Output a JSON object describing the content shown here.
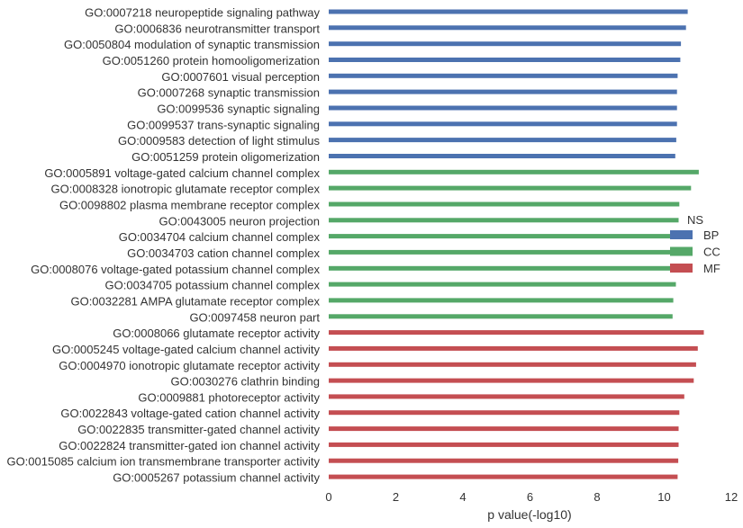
{
  "chart_data": {
    "type": "bar",
    "orientation": "horizontal",
    "xlabel": "p value(-log10)",
    "xlim": [
      0,
      12
    ],
    "xticks": [
      "0",
      "2",
      "4",
      "6",
      "8",
      "10",
      "12"
    ],
    "grid": false,
    "legend": {
      "title": "NS",
      "placement": "center-right",
      "entries": [
        {
          "name": "BP",
          "color": "#4C72B0"
        },
        {
          "name": "CC",
          "color": "#55A868"
        },
        {
          "name": "MF",
          "color": "#C44E52"
        }
      ]
    },
    "series": [
      {
        "name": "BP",
        "color": "#4C72B0",
        "categories": [
          "GO:0007218 neuropeptide signaling pathway",
          "GO:0006836 neurotransmitter transport",
          "GO:0050804 modulation of synaptic transmission",
          "GO:0051260 protein homooligomerization",
          "GO:0007601 visual perception",
          "GO:0007268 synaptic transmission",
          "GO:0099536 synaptic signaling",
          "GO:0099537 trans-synaptic signaling",
          "GO:0009583 detection of light stimulus",
          "GO:0051259 protein oligomerization"
        ],
        "values": [
          10.7,
          10.65,
          10.5,
          10.48,
          10.4,
          10.38,
          10.38,
          10.38,
          10.36,
          10.33
        ]
      },
      {
        "name": "CC",
        "color": "#55A868",
        "categories": [
          "GO:0005891 voltage-gated calcium channel complex",
          "GO:0008328 ionotropic glutamate receptor complex",
          "GO:0098802 plasma membrane receptor complex",
          "GO:0043005 neuron projection",
          "GO:0034704 calcium channel complex",
          "GO:0034703 cation channel complex",
          "GO:0008076 voltage-gated potassium channel complex",
          "GO:0034705 potassium channel complex",
          "GO:0032281 AMPA glutamate receptor complex",
          "GO:0097458 neuron part"
        ],
        "values": [
          11.03,
          10.8,
          10.45,
          10.43,
          10.4,
          10.4,
          10.38,
          10.35,
          10.27,
          10.25
        ]
      },
      {
        "name": "MF",
        "color": "#C44E52",
        "categories": [
          "GO:0008066 glutamate receptor activity",
          "GO:0005245 voltage-gated calcium channel activity",
          "GO:0004970 ionotropic glutamate receptor activity",
          "GO:0030276 clathrin binding",
          "GO:0009881 photoreceptor activity",
          "GO:0022843 voltage-gated cation channel activity",
          "GO:0022835 transmitter-gated channel activity",
          "GO:0022824 transmitter-gated ion channel activity",
          "GO:0015085 calcium ion transmembrane transporter activity",
          "GO:0005267 potassium channel activity"
        ],
        "values": [
          11.18,
          11.0,
          10.95,
          10.88,
          10.6,
          10.45,
          10.43,
          10.43,
          10.42,
          10.4
        ]
      }
    ]
  }
}
